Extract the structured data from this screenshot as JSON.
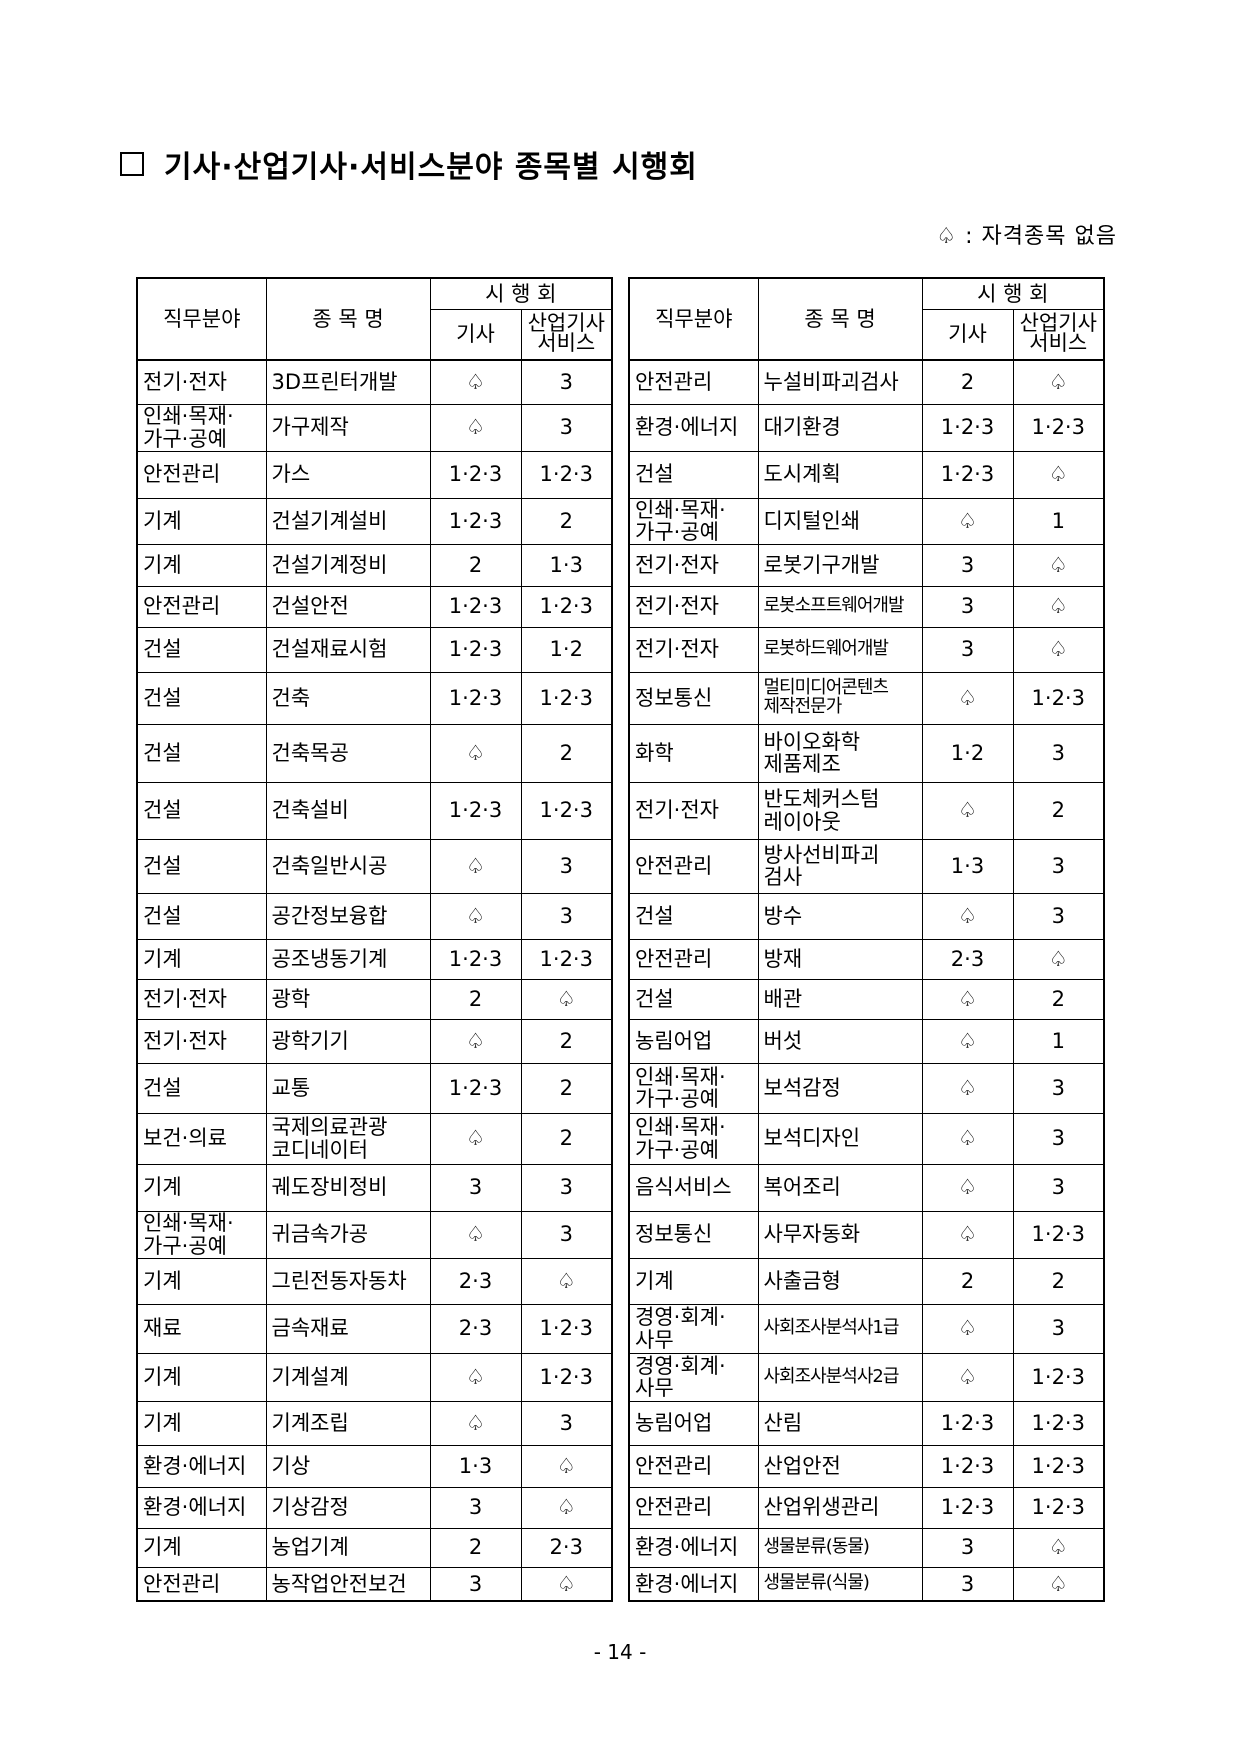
{
  "title": "기사·산업기사·서비스분야 종목별 시행회",
  "legend": {
    "symbol": "♤",
    "text": ": 자격종목 없음"
  },
  "headers": {
    "field": "직무분야",
    "name": "종 목 명",
    "exam_round": "시 행 회",
    "gisa": "기사",
    "sanup": [
      "산업기사",
      "서비스"
    ]
  },
  "none_symbol": "♤",
  "left_rows": [
    {
      "field": [
        "전기·전자"
      ],
      "name": [
        "3D프린터개발"
      ],
      "gisa": "♤",
      "sanup": "3"
    },
    {
      "field": [
        "인쇄·목재·",
        "가구·공예"
      ],
      "name": [
        "가구제작"
      ],
      "gisa": "♤",
      "sanup": "3"
    },
    {
      "field": [
        "안전관리"
      ],
      "name": [
        "가스"
      ],
      "gisa": "1·2·3",
      "sanup": "1·2·3"
    },
    {
      "field": [
        "기계"
      ],
      "name": [
        "건설기계설비"
      ],
      "gisa": "1·2·3",
      "sanup": "2"
    },
    {
      "field": [
        "기계"
      ],
      "name": [
        "건설기계정비"
      ],
      "gisa": "2",
      "sanup": "1·3"
    },
    {
      "field": [
        "안전관리"
      ],
      "name": [
        "건설안전"
      ],
      "gisa": "1·2·3",
      "sanup": "1·2·3"
    },
    {
      "field": [
        "건설"
      ],
      "name": [
        "건설재료시험"
      ],
      "gisa": "1·2·3",
      "sanup": "1·2"
    },
    {
      "field": [
        "건설"
      ],
      "name": [
        "건축"
      ],
      "gisa": "1·2·3",
      "sanup": "1·2·3"
    },
    {
      "field": [
        "건설"
      ],
      "name": [
        "건축목공"
      ],
      "gisa": "♤",
      "sanup": "2"
    },
    {
      "field": [
        "건설"
      ],
      "name": [
        "건축설비"
      ],
      "gisa": "1·2·3",
      "sanup": "1·2·3"
    },
    {
      "field": [
        "건설"
      ],
      "name": [
        "건축일반시공"
      ],
      "gisa": "♤",
      "sanup": "3"
    },
    {
      "field": [
        "건설"
      ],
      "name": [
        "공간정보융합"
      ],
      "gisa": "♤",
      "sanup": "3"
    },
    {
      "field": [
        "기계"
      ],
      "name": [
        "공조냉동기계"
      ],
      "gisa": "1·2·3",
      "sanup": "1·2·3"
    },
    {
      "field": [
        "전기·전자"
      ],
      "name": [
        "광학"
      ],
      "gisa": "2",
      "sanup": "♤"
    },
    {
      "field": [
        "전기·전자"
      ],
      "name": [
        "광학기기"
      ],
      "gisa": "♤",
      "sanup": "2"
    },
    {
      "field": [
        "건설"
      ],
      "name": [
        "교통"
      ],
      "gisa": "1·2·3",
      "sanup": "2"
    },
    {
      "field": [
        "보건·의료"
      ],
      "name": [
        "국제의료관광",
        "코디네이터"
      ],
      "gisa": "♤",
      "sanup": "2"
    },
    {
      "field": [
        "기계"
      ],
      "name": [
        "궤도장비정비"
      ],
      "gisa": "3",
      "sanup": "3"
    },
    {
      "field": [
        "인쇄·목재·",
        "가구·공예"
      ],
      "name": [
        "귀금속가공"
      ],
      "gisa": "♤",
      "sanup": "3"
    },
    {
      "field": [
        "기계"
      ],
      "name": [
        "그린전동자동차"
      ],
      "gisa": "2·3",
      "sanup": "♤"
    },
    {
      "field": [
        "재료"
      ],
      "name": [
        "금속재료"
      ],
      "gisa": "2·3",
      "sanup": "1·2·3"
    },
    {
      "field": [
        "기계"
      ],
      "name": [
        "기계설계"
      ],
      "gisa": "♤",
      "sanup": "1·2·3"
    },
    {
      "field": [
        "기계"
      ],
      "name": [
        "기계조립"
      ],
      "gisa": "♤",
      "sanup": "3"
    },
    {
      "field": [
        "환경·에너지"
      ],
      "name": [
        "기상"
      ],
      "gisa": "1·3",
      "sanup": "♤"
    },
    {
      "field": [
        "환경·에너지"
      ],
      "name": [
        "기상감정"
      ],
      "gisa": "3",
      "sanup": "♤"
    },
    {
      "field": [
        "기계"
      ],
      "name": [
        "농업기계"
      ],
      "gisa": "2",
      "sanup": "2·3"
    },
    {
      "field": [
        "안전관리"
      ],
      "name": [
        "농작업안전보건"
      ],
      "gisa": "3",
      "sanup": "♤"
    }
  ],
  "right_rows": [
    {
      "field": [
        "안전관리"
      ],
      "name": [
        "누설비파괴검사"
      ],
      "gisa": "2",
      "sanup": "♤"
    },
    {
      "field": [
        "환경·에너지"
      ],
      "name": [
        "대기환경"
      ],
      "gisa": "1·2·3",
      "sanup": "1·2·3"
    },
    {
      "field": [
        "건설"
      ],
      "name": [
        "도시계획"
      ],
      "gisa": "1·2·3",
      "sanup": "♤"
    },
    {
      "field": [
        "인쇄·목재·",
        "가구·공예"
      ],
      "name": [
        "디지털인쇄"
      ],
      "gisa": "♤",
      "sanup": "1"
    },
    {
      "field": [
        "전기·전자"
      ],
      "name": [
        "로봇기구개발"
      ],
      "gisa": "3",
      "sanup": "♤"
    },
    {
      "field": [
        "전기·전자"
      ],
      "name": [
        "로봇소프트웨어개발"
      ],
      "gisa": "3",
      "sanup": "♤"
    },
    {
      "field": [
        "전기·전자"
      ],
      "name": [
        "로봇하드웨어개발"
      ],
      "gisa": "3",
      "sanup": "♤"
    },
    {
      "field": [
        "정보통신"
      ],
      "name": [
        "멀티미디어콘텐츠",
        "제작전문가"
      ],
      "gisa": "♤",
      "sanup": "1·2·3"
    },
    {
      "field": [
        "화학"
      ],
      "name": [
        "바이오화학",
        "제품제조"
      ],
      "gisa": "1·2",
      "sanup": "3"
    },
    {
      "field": [
        "전기·전자"
      ],
      "name": [
        "반도체커스텀",
        "레이아웃"
      ],
      "gisa": "♤",
      "sanup": "2"
    },
    {
      "field": [
        "안전관리"
      ],
      "name": [
        "방사선비파괴",
        "검사"
      ],
      "gisa": "1·3",
      "sanup": "3"
    },
    {
      "field": [
        "건설"
      ],
      "name": [
        "방수"
      ],
      "gisa": "♤",
      "sanup": "3"
    },
    {
      "field": [
        "안전관리"
      ],
      "name": [
        "방재"
      ],
      "gisa": "2·3",
      "sanup": "♤"
    },
    {
      "field": [
        "건설"
      ],
      "name": [
        "배관"
      ],
      "gisa": "♤",
      "sanup": "2"
    },
    {
      "field": [
        "농림어업"
      ],
      "name": [
        "버섯"
      ],
      "gisa": "♤",
      "sanup": "1"
    },
    {
      "field": [
        "인쇄·목재·",
        "가구·공예"
      ],
      "name": [
        "보석감정"
      ],
      "gisa": "♤",
      "sanup": "3"
    },
    {
      "field": [
        "인쇄·목재·",
        "가구·공예"
      ],
      "name": [
        "보석디자인"
      ],
      "gisa": "♤",
      "sanup": "3"
    },
    {
      "field": [
        "음식서비스"
      ],
      "name": [
        "복어조리"
      ],
      "gisa": "♤",
      "sanup": "3"
    },
    {
      "field": [
        "정보통신"
      ],
      "name": [
        "사무자동화"
      ],
      "gisa": "♤",
      "sanup": "1·2·3"
    },
    {
      "field": [
        "기계"
      ],
      "name": [
        "사출금형"
      ],
      "gisa": "2",
      "sanup": "2"
    },
    {
      "field": [
        "경영·회계·",
        "사무"
      ],
      "name": [
        "사회조사분석사1급"
      ],
      "gisa": "♤",
      "sanup": "3"
    },
    {
      "field": [
        "경영·회계·",
        "사무"
      ],
      "name": [
        "사회조사분석사2급"
      ],
      "gisa": "♤",
      "sanup": "1·2·3"
    },
    {
      "field": [
        "농림어업"
      ],
      "name": [
        "산림"
      ],
      "gisa": "1·2·3",
      "sanup": "1·2·3"
    },
    {
      "field": [
        "안전관리"
      ],
      "name": [
        "산업안전"
      ],
      "gisa": "1·2·3",
      "sanup": "1·2·3"
    },
    {
      "field": [
        "안전관리"
      ],
      "name": [
        "산업위생관리"
      ],
      "gisa": "1·2·3",
      "sanup": "1·2·3"
    },
    {
      "field": [
        "환경·에너지"
      ],
      "name": [
        "생물분류(동물)"
      ],
      "gisa": "3",
      "sanup": "♤"
    },
    {
      "field": [
        "환경·에너지"
      ],
      "name": [
        "생물분류(식물)"
      ],
      "gisa": "3",
      "sanup": "♤"
    }
  ],
  "page_number": "- 14 -"
}
